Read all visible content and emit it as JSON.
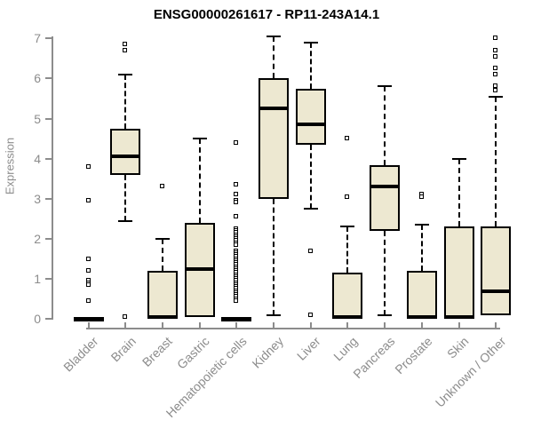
{
  "title": "ENSG00000261617 - RP11-243A14.1",
  "chart_data": {
    "type": "boxplot",
    "title": "ENSG00000261617 - RP11-243A14.1",
    "xlabel": "",
    "ylabel": "Expression",
    "ylim": [
      0,
      7
    ],
    "yticks": [
      0,
      1,
      2,
      3,
      4,
      5,
      6,
      7
    ],
    "grid": false,
    "legend": "none",
    "box_fill_color": "#ede8d1",
    "box_border_color": "#000000",
    "axis_color": "#8c8c8c",
    "categories": [
      "Bladder",
      "Brain",
      "Breast",
      "Gastric",
      "Hematopoietic cells",
      "Kidney",
      "Liver",
      "Lung",
      "Pancreas",
      "Prostate",
      "Skin",
      "Unknown / Other"
    ],
    "series": [
      {
        "label": "Bladder",
        "whislo": 0,
        "q1": 0,
        "med": 0,
        "q3": 0,
        "whishi": 0,
        "outliers": [
          3.8,
          2.95,
          1.5,
          1.2,
          0.95,
          0.9,
          0.85,
          0.45
        ]
      },
      {
        "label": "Brain",
        "whislo": 2.45,
        "q1": 3.6,
        "med": 4.05,
        "q3": 4.75,
        "whishi": 6.1,
        "outliers": [
          6.85,
          6.7,
          0.05
        ]
      },
      {
        "label": "Breast",
        "whislo": 0,
        "q1": 0,
        "med": 0.05,
        "q3": 1.2,
        "whishi": 2.0,
        "outliers": [
          3.3
        ]
      },
      {
        "label": "Gastric",
        "whislo": 0.05,
        "q1": 0.05,
        "med": 1.25,
        "q3": 2.4,
        "whishi": 4.5,
        "outliers": []
      },
      {
        "label": "Hematopoietic cells",
        "whislo": 0,
        "q1": 0,
        "med": 0,
        "q3": 0,
        "whishi": 0,
        "outliers": [
          4.4,
          3.35,
          3.1,
          2.95,
          2.9,
          2.55,
          2.25,
          2.2,
          2.15,
          2.1,
          2.05,
          2.0,
          1.95,
          1.9,
          1.85,
          1.7,
          1.65,
          1.6,
          1.55,
          1.5,
          1.45,
          1.4,
          1.35,
          1.3,
          1.25,
          1.2,
          1.15,
          1.1,
          1.05,
          1.0,
          0.95,
          0.9,
          0.85,
          0.8,
          0.75,
          0.7,
          0.65,
          0.6,
          0.55,
          0.5,
          0.45
        ]
      },
      {
        "label": "Kidney",
        "whislo": 0.1,
        "q1": 3.0,
        "med": 5.25,
        "q3": 6.0,
        "whishi": 7.05,
        "outliers": []
      },
      {
        "label": "Liver",
        "whislo": 2.75,
        "q1": 4.35,
        "med": 4.85,
        "q3": 5.75,
        "whishi": 6.9,
        "outliers": [
          1.7,
          0.1
        ]
      },
      {
        "label": "Lung",
        "whislo": 0,
        "q1": 0,
        "med": 0.05,
        "q3": 1.15,
        "whishi": 2.3,
        "outliers": [
          4.5,
          3.05
        ]
      },
      {
        "label": "Pancreas",
        "whislo": 0.1,
        "q1": 2.2,
        "med": 3.3,
        "q3": 3.85,
        "whishi": 5.8,
        "outliers": []
      },
      {
        "label": "Prostate",
        "whislo": 0,
        "q1": 0,
        "med": 0.05,
        "q3": 1.2,
        "whishi": 2.35,
        "outliers": [
          3.1,
          3.05
        ]
      },
      {
        "label": "Skin",
        "whislo": 0,
        "q1": 0,
        "med": 0.05,
        "q3": 2.3,
        "whishi": 4.0,
        "outliers": []
      },
      {
        "label": "Unknown / Other",
        "whislo": 0.1,
        "q1": 0.1,
        "med": 0.7,
        "q3": 2.3,
        "whishi": 5.55,
        "outliers": [
          7.0,
          6.7,
          6.55,
          6.25,
          6.1,
          5.8,
          5.7
        ]
      }
    ]
  }
}
